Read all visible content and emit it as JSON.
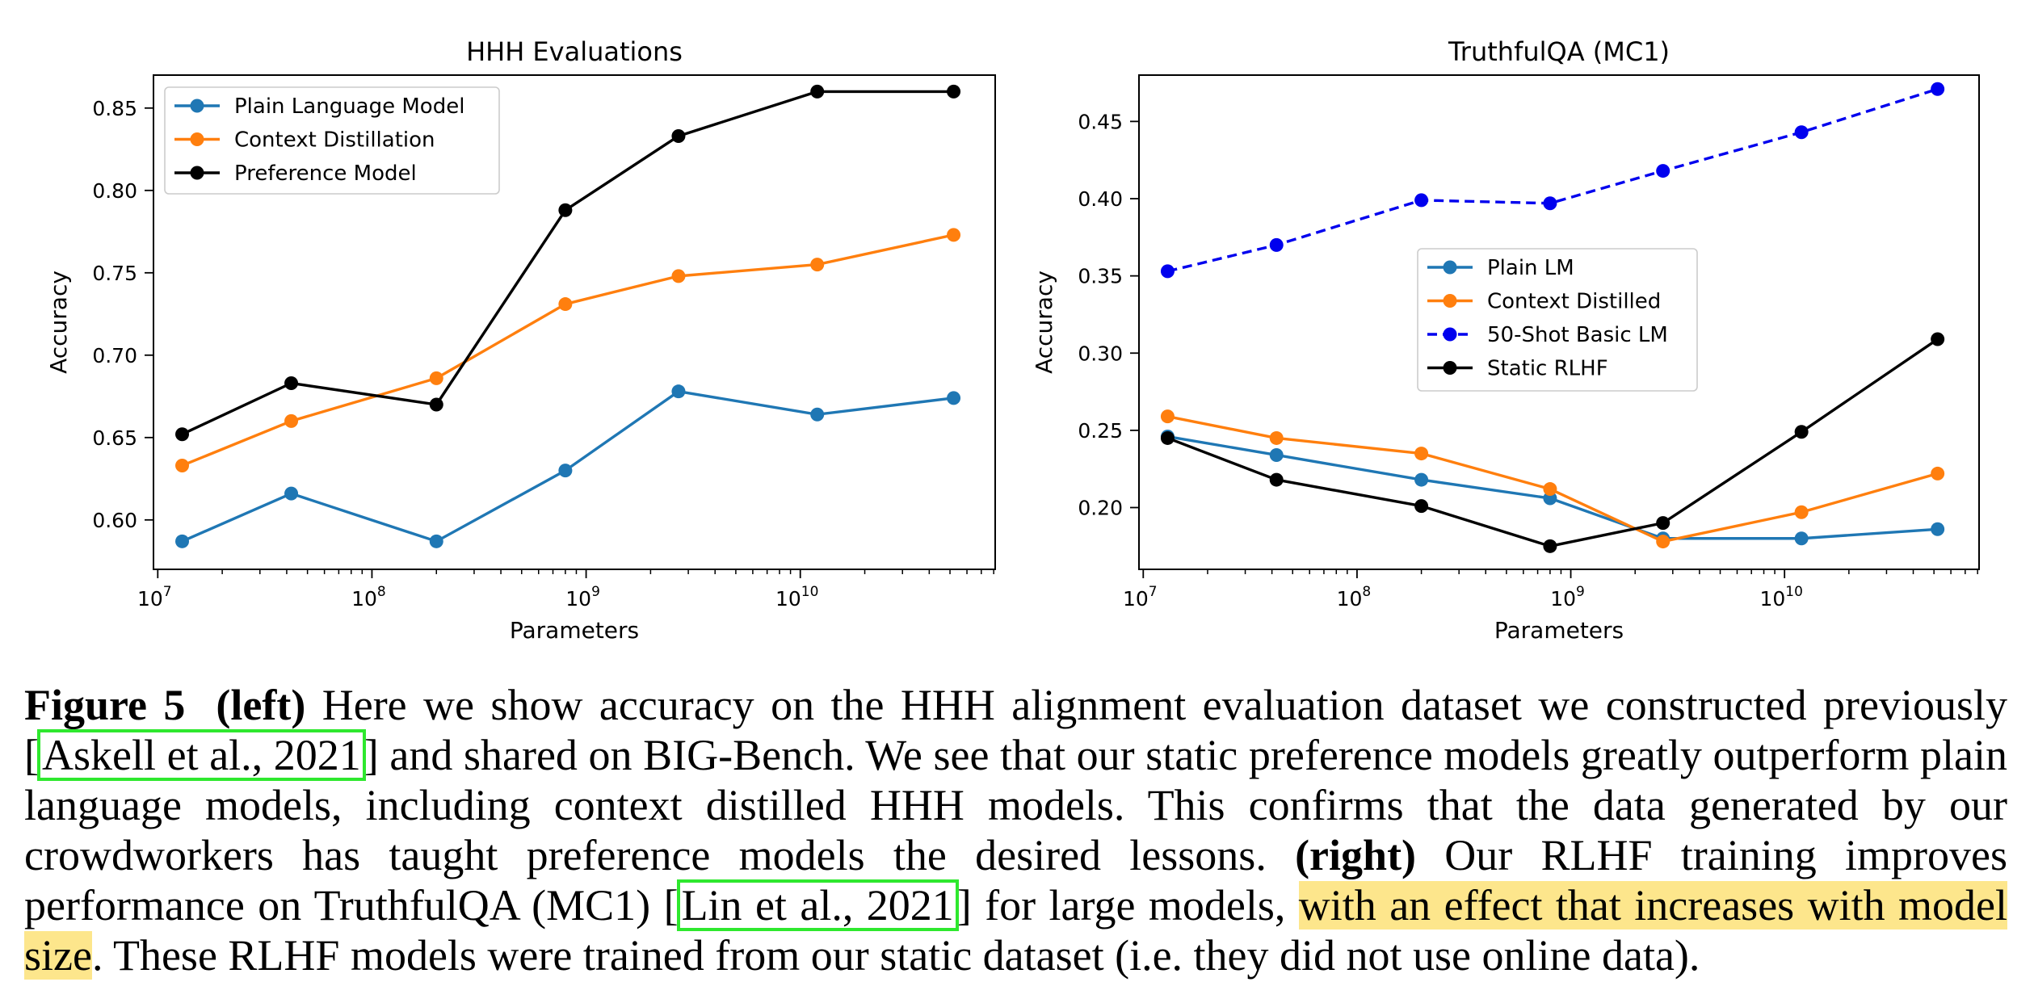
{
  "figure": {
    "panels": [
      {
        "id": "left",
        "chart_data": {
          "type": "line",
          "title": "HHH Evaluations",
          "xlabel": "Parameters",
          "ylabel": "Accuracy",
          "xscale": "log",
          "x_ticks": [
            {
              "base": "10",
              "exp": "7"
            },
            {
              "base": "10",
              "exp": "8"
            },
            {
              "base": "10",
              "exp": "9"
            },
            {
              "base": "10",
              "exp": "10"
            }
          ],
          "y_ticks": [
            "0.60",
            "0.65",
            "0.70",
            "0.75",
            "0.80",
            "0.85"
          ],
          "ylim": [
            0.57,
            0.87
          ],
          "xlim_log10": [
            6.98,
            10.91
          ],
          "legend_position": "upper-left",
          "x": [
            13000000,
            42000000,
            200000000,
            800000000,
            2700000000,
            12000000000,
            52000000000
          ],
          "series": [
            {
              "name": "Plain Language Model",
              "color": "#1f77b4",
              "dashed": false,
              "values": [
                0.587,
                0.616,
                0.587,
                0.63,
                0.678,
                0.664,
                0.674
              ]
            },
            {
              "name": "Context Distillation",
              "color": "#ff7f0e",
              "dashed": false,
              "values": [
                0.633,
                0.66,
                0.686,
                0.731,
                0.748,
                0.755,
                0.773
              ]
            },
            {
              "name": "Preference Model",
              "color": "#000000",
              "dashed": false,
              "values": [
                0.652,
                0.683,
                0.67,
                0.788,
                0.833,
                0.86,
                0.86
              ]
            }
          ]
        }
      },
      {
        "id": "right",
        "chart_data": {
          "type": "line",
          "title": "TruthfulQA (MC1)",
          "xlabel": "Parameters",
          "ylabel": "Accuracy",
          "xscale": "log",
          "x_ticks": [
            {
              "base": "10",
              "exp": "7"
            },
            {
              "base": "10",
              "exp": "8"
            },
            {
              "base": "10",
              "exp": "9"
            },
            {
              "base": "10",
              "exp": "10"
            }
          ],
          "y_ticks": [
            "0.20",
            "0.25",
            "0.30",
            "0.35",
            "0.40",
            "0.45"
          ],
          "ylim": [
            0.16,
            0.48
          ],
          "xlim_log10": [
            6.98,
            10.91
          ],
          "legend_position": "center",
          "x": [
            13000000,
            42000000,
            200000000,
            800000000,
            2700000000,
            12000000000,
            52000000000
          ],
          "series": [
            {
              "name": "Plain LM",
              "color": "#1f77b4",
              "dashed": false,
              "values": [
                0.246,
                0.234,
                0.218,
                0.206,
                0.18,
                0.18,
                0.186
              ]
            },
            {
              "name": "Context Distilled",
              "color": "#ff7f0e",
              "dashed": false,
              "values": [
                0.259,
                0.245,
                0.235,
                0.212,
                0.178,
                0.197,
                0.222
              ]
            },
            {
              "name": "50-Shot Basic LM",
              "color": "#0000ee",
              "dashed": true,
              "values": [
                0.353,
                0.37,
                0.399,
                0.397,
                0.418,
                0.443,
                0.471
              ]
            },
            {
              "name": "Static RLHF",
              "color": "#000000",
              "dashed": false,
              "values": [
                0.245,
                0.218,
                0.201,
                0.175,
                0.19,
                0.249,
                0.309
              ]
            }
          ]
        }
      }
    ]
  },
  "caption": {
    "label": "Figure 5",
    "left_tag": "(left)",
    "part1": " Here we show accuracy on the HHH alignment evaluation dataset we constructed previously [",
    "cite1": "Askell et al., 2021",
    "part2": "] and shared on BIG-Bench. We see that our static preference models greatly outperform plain language models, including context distilled HHH models. This confirms that the data generated by our crowdworkers has taught preference models the desired lessons. ",
    "right_tag": "(right)",
    "part3": " Our RLHF training improves performance on TruthfulQA (MC1) [",
    "cite2": "Lin et al., 2021",
    "part4": "] for large models, ",
    "highlight": "with an effect that increases with model size",
    "part5": ". These RLHF models were trained from our static dataset (i.e. they did not use online data)."
  }
}
